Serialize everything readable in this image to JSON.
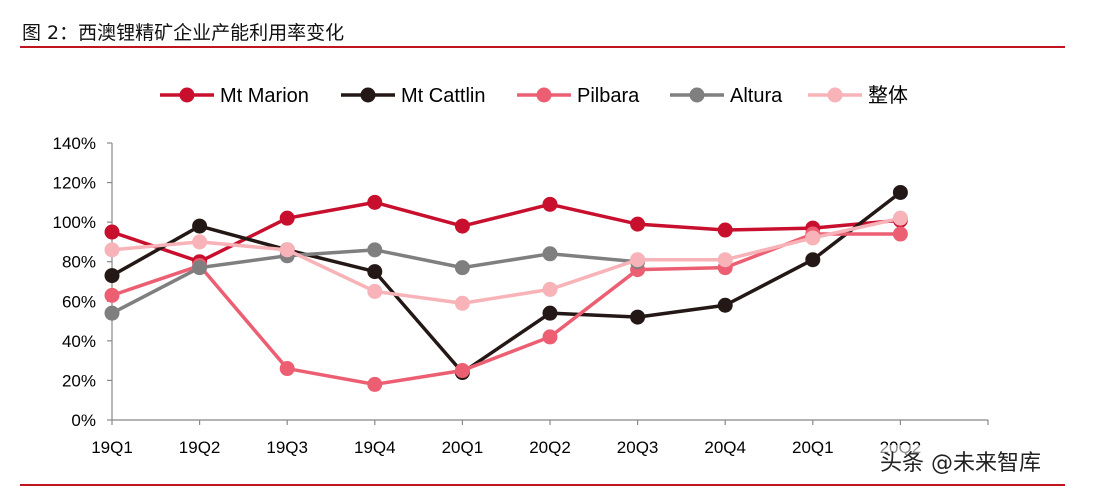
{
  "title": "图 2：西澳锂精矿企业产能利用率变化",
  "watermark": "头条 @未来智库",
  "chart_data": {
    "type": "line",
    "title": "图 2：西澳锂精矿企业产能利用率变化",
    "xlabel": "",
    "ylabel": "",
    "ylim": [
      0,
      140
    ],
    "y_ticks": [
      "0%",
      "20%",
      "40%",
      "60%",
      "80%",
      "100%",
      "120%",
      "140%"
    ],
    "categories": [
      "19Q1",
      "19Q2",
      "19Q3",
      "19Q4",
      "20Q1",
      "20Q2",
      "20Q3",
      "20Q4",
      "20Q1",
      "20Q2"
    ],
    "legend_position": "top",
    "series": [
      {
        "name": "Mt Marion",
        "color": "#c8102e",
        "values": [
          95,
          80,
          102,
          110,
          98,
          109,
          99,
          96,
          97,
          101
        ]
      },
      {
        "name": "Mt Cattlin",
        "color": "#231815",
        "values": [
          73,
          98,
          86,
          75,
          24,
          54,
          52,
          58,
          81,
          115
        ]
      },
      {
        "name": "Pilbara",
        "color": "#ec5f73",
        "values": [
          63,
          78,
          26,
          18,
          25,
          42,
          76,
          77,
          94,
          94
        ]
      },
      {
        "name": "Altura",
        "color": "#7f7f7f",
        "values": [
          54,
          77,
          83,
          86,
          77,
          84,
          80,
          null,
          null,
          null
        ]
      },
      {
        "name": "整体",
        "color": "#f7b3b8",
        "values": [
          86,
          90,
          86,
          65,
          59,
          66,
          81,
          81,
          92,
          102
        ]
      }
    ]
  }
}
